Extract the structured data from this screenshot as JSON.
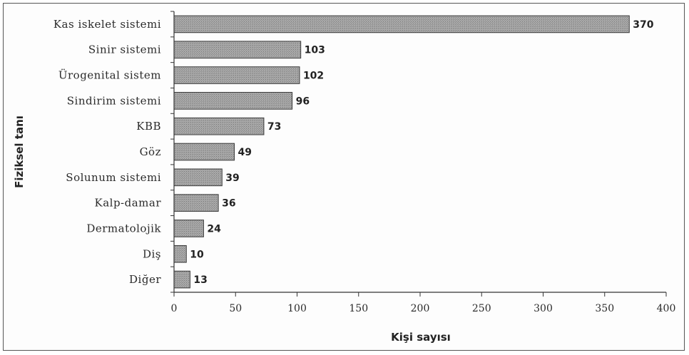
{
  "chart_data": {
    "type": "bar",
    "orientation": "horizontal",
    "categories": [
      "Kas iskelet sistemi",
      "Sinir sistemi",
      "Ürogenital sistem",
      "Sindirim sistemi",
      "KBB",
      "Göz",
      "Solunum sistemi",
      "Kalp-damar",
      "Dermatolojik",
      "Diş",
      "Diğer"
    ],
    "values": [
      370,
      103,
      102,
      96,
      73,
      49,
      39,
      36,
      24,
      10,
      13
    ],
    "xlabel": "Kişi sayısı",
    "ylabel": "Fiziksel tanı",
    "xlim": [
      0,
      400
    ],
    "xticks": [
      0,
      50,
      100,
      150,
      200,
      250,
      300,
      350,
      400
    ],
    "grid": false,
    "bar_color": "#9a9a9a"
  }
}
